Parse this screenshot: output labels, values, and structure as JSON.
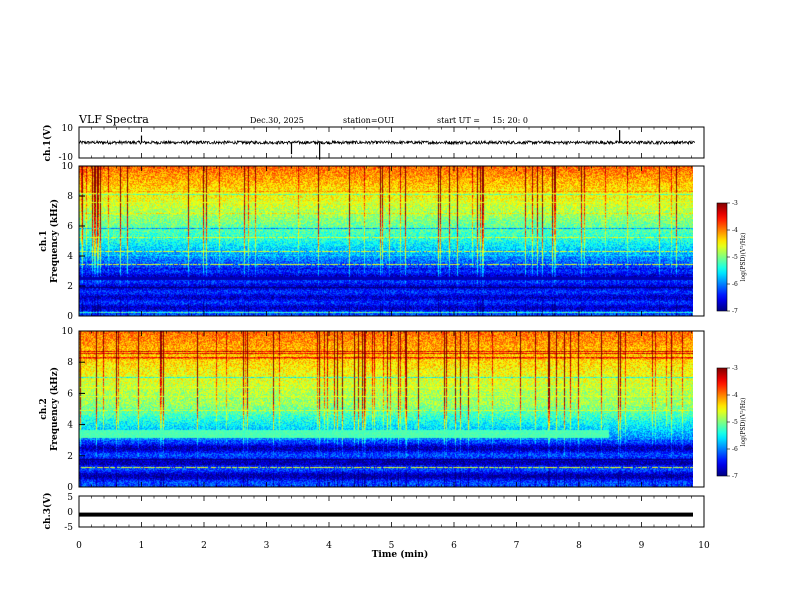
{
  "header": {
    "title": "VLF Spectra",
    "date": "Dec.30, 2025",
    "station": "station=OUI",
    "start_label": "start  UT  =",
    "start_time": "15: 20: 0"
  },
  "chart_data": [
    {
      "type": "line",
      "id": "ch1-waveform",
      "ylabel": "ch.1(V)",
      "ylim": [
        -10,
        10
      ],
      "y_ticks": [
        "10",
        "-10"
      ],
      "baseline": 0,
      "noise_amplitude": 1
    },
    {
      "type": "heatmap",
      "id": "ch1-spectrogram",
      "ylabel": "ch.1\nFrequency  (kHz)",
      "ylabel_lines": [
        "ch.1",
        "Frequency  (kHz)"
      ],
      "ylim": [
        0,
        10
      ],
      "y_ticks": [
        "0",
        "2",
        "4",
        "6",
        "8",
        "10"
      ],
      "colorbar": {
        "label": "log(PSD)(V²/Hz)",
        "range": [
          -7,
          -3
        ],
        "ticks": [
          "-7",
          "-6",
          "-5",
          "-4",
          "-3"
        ]
      }
    },
    {
      "type": "heatmap",
      "id": "ch2-spectrogram",
      "ylabel": "ch.2\nFrequency  (kHz)",
      "ylabel_lines": [
        "ch.2",
        "Frequency  (kHz)"
      ],
      "ylim": [
        0,
        10
      ],
      "y_ticks": [
        "0",
        "2",
        "4",
        "6",
        "8",
        "10"
      ],
      "narrowband_line_khz": 3.4,
      "narrowband_end_min": 8.5,
      "colorbar": {
        "label": "log(PSD)(V²/Hz)",
        "range": [
          -7,
          -3
        ],
        "ticks": [
          "-7",
          "-6",
          "-5",
          "-4",
          "-3"
        ]
      }
    },
    {
      "type": "line",
      "id": "ch3-waveform",
      "ylabel": "ch.3(V)",
      "ylim": [
        -5,
        5
      ],
      "y_ticks": [
        "5",
        "0",
        "-5"
      ],
      "baseline": -1
    }
  ],
  "x_axis": {
    "label": "Time  (min)",
    "range": [
      0,
      10
    ],
    "data_end": 9.85,
    "ticks": [
      "0",
      "1",
      "2",
      "3",
      "4",
      "5",
      "6",
      "7",
      "8",
      "9",
      "10"
    ]
  }
}
